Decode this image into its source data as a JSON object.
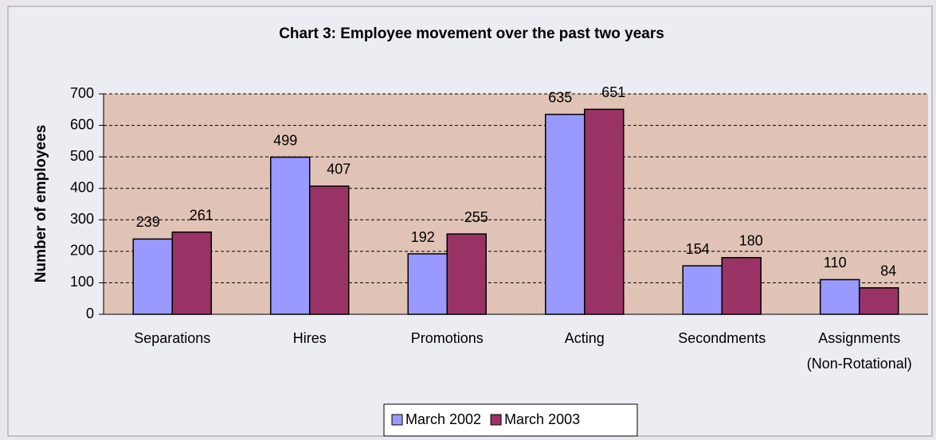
{
  "chart_data": {
    "type": "bar",
    "title": "Chart 3: Employee movement over the past two years",
    "y_label": "Number of employees",
    "categories": [
      "Separations",
      "Hires",
      "Promotions",
      "Acting",
      "Secondments",
      "Assignments (Non-Rotational)"
    ],
    "series": [
      {
        "name": "March 2002",
        "color": "#9999ff",
        "values": [
          239,
          499,
          192,
          635,
          154,
          110
        ]
      },
      {
        "name": "March 2003",
        "color": "#993366",
        "values": [
          261,
          407,
          255,
          651,
          180,
          84
        ]
      }
    ],
    "ylim": [
      0,
      700
    ],
    "yticks": [
      0,
      100,
      200,
      300,
      400,
      500,
      600,
      700
    ],
    "grid": true
  }
}
